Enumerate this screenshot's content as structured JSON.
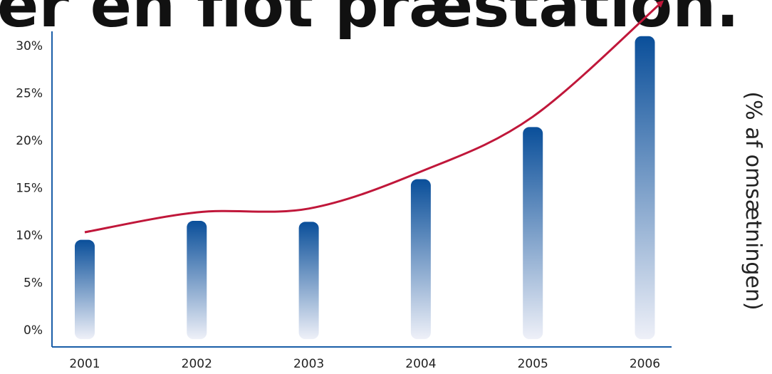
{
  "chart_data": {
    "type": "bar",
    "title": "er en flot præstation.",
    "ylabel": "(% af omsætningen)",
    "categories": [
      "2001",
      "2002",
      "2003",
      "2004",
      "2005",
      "2006"
    ],
    "values": [
      9.5,
      11.5,
      11.4,
      15.9,
      21.4,
      31.0
    ],
    "trend_line": [
      10.3,
      12.4,
      12.8,
      16.7,
      22.5,
      33.0
    ],
    "ylim": [
      0,
      31
    ],
    "yticks": [
      "0%",
      "5%",
      "10%",
      "15%",
      "20%",
      "25%",
      "30%"
    ],
    "colors": {
      "bar_top": "#0a4f9a",
      "bar_bottom": "#eef0f8",
      "trend": "#c0173a",
      "axis": "#1a5ea8"
    }
  }
}
